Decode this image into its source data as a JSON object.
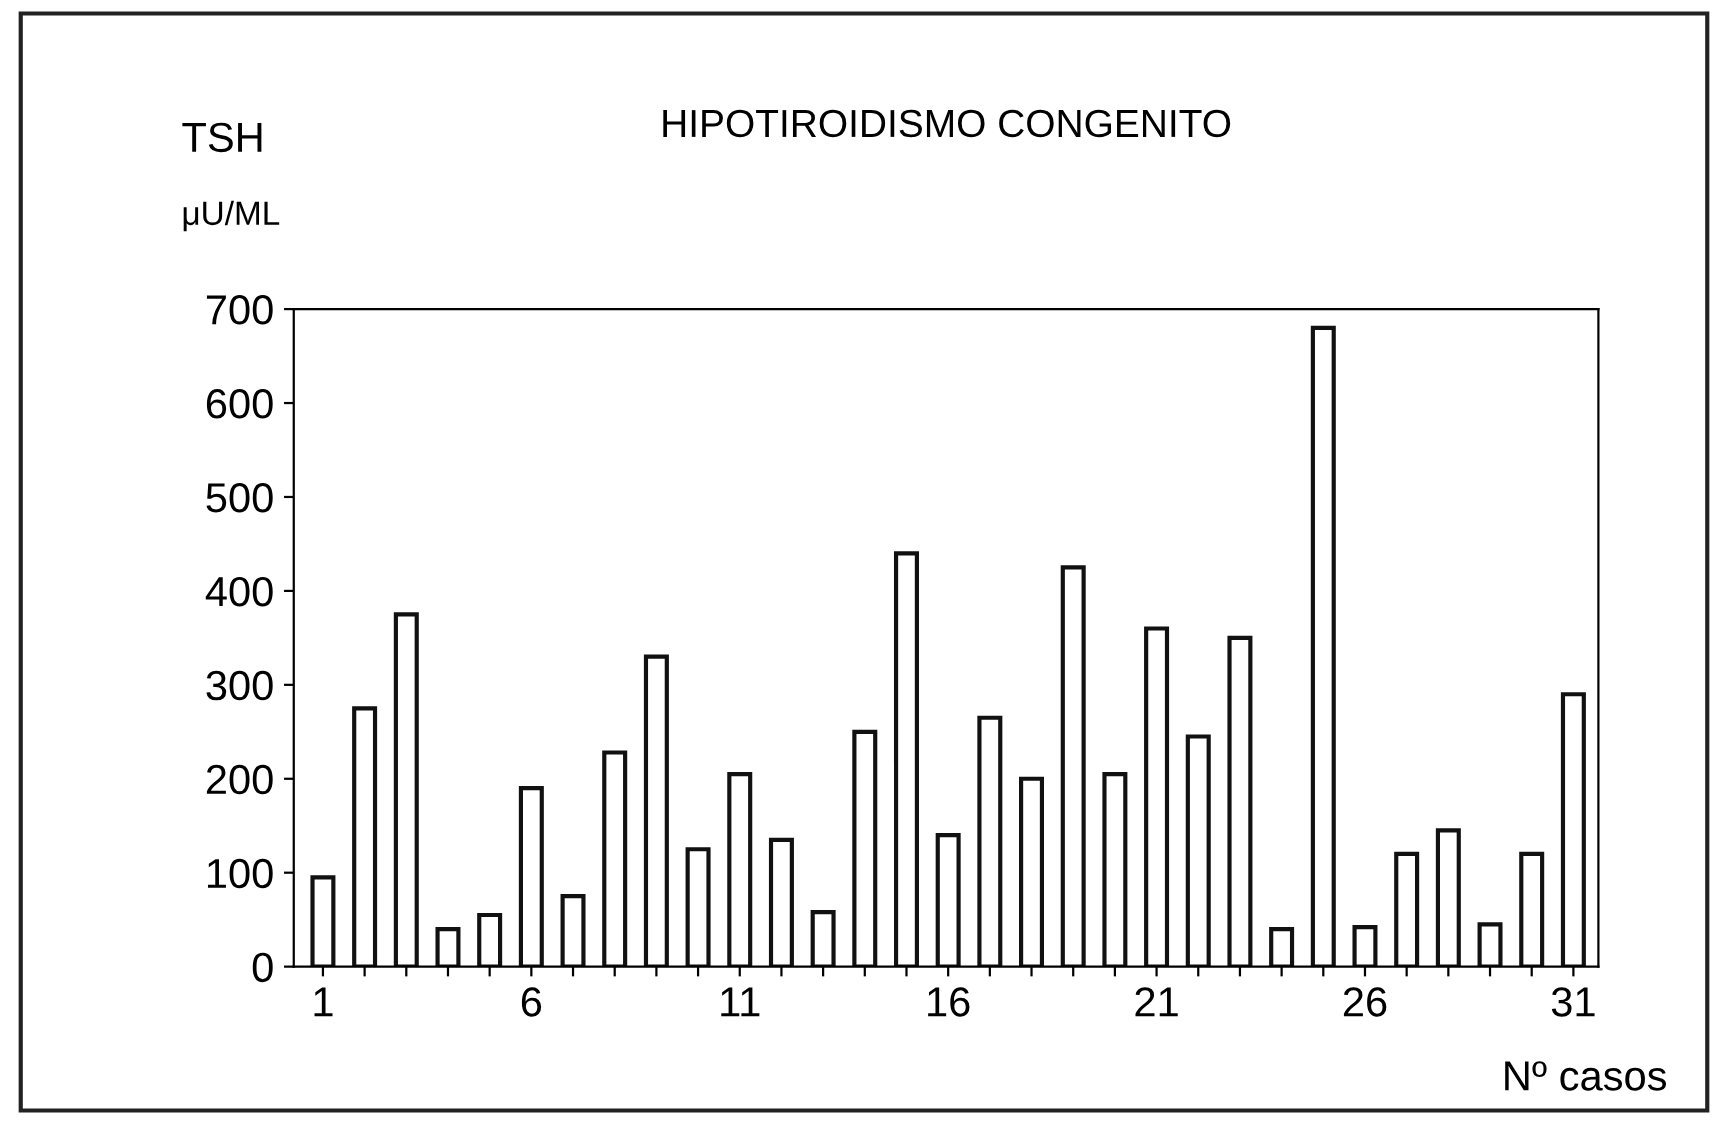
{
  "chart_data": {
    "type": "bar",
    "title": "HIPOTIROIDISMO CONGENITO",
    "ylabel": "TSH\nμU/ML",
    "xlabel": "Nº casos",
    "categories": [
      "1",
      null,
      null,
      null,
      null,
      "6",
      null,
      null,
      null,
      null,
      "11",
      null,
      null,
      null,
      null,
      "16",
      null,
      null,
      null,
      null,
      "21",
      null,
      null,
      null,
      null,
      "26",
      null,
      null,
      null,
      null,
      "31"
    ],
    "values": [
      95,
      275,
      375,
      40,
      55,
      190,
      75,
      228,
      330,
      125,
      205,
      135,
      58,
      250,
      440,
      140,
      265,
      200,
      425,
      205,
      360,
      245,
      350,
      40,
      680,
      42,
      120,
      145,
      45,
      120,
      290
    ],
    "color": "#ffffff",
    "ylim": [
      0,
      700
    ],
    "yticks": [
      0,
      100,
      200,
      300,
      400,
      500,
      600,
      700
    ],
    "grid": false
  }
}
